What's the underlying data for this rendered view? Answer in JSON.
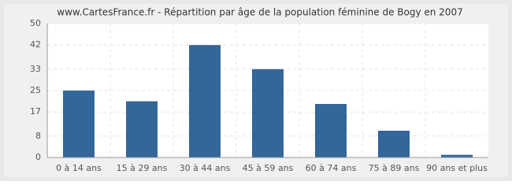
{
  "chart_data": {
    "type": "bar",
    "title": "www.CartesFrance.fr - Répartition par âge de la population féminine de Bogy en 2007",
    "categories": [
      "0 à 14 ans",
      "15 à 29 ans",
      "30 à 44 ans",
      "45 à 59 ans",
      "60 à 74 ans",
      "75 à 89 ans",
      "90 ans et plus"
    ],
    "values": [
      25,
      21,
      42,
      33,
      20,
      10,
      1
    ],
    "color": "#336699",
    "ylim": [
      0,
      50
    ],
    "yticks": [
      0,
      8,
      17,
      25,
      33,
      42,
      50
    ],
    "grid": true
  }
}
